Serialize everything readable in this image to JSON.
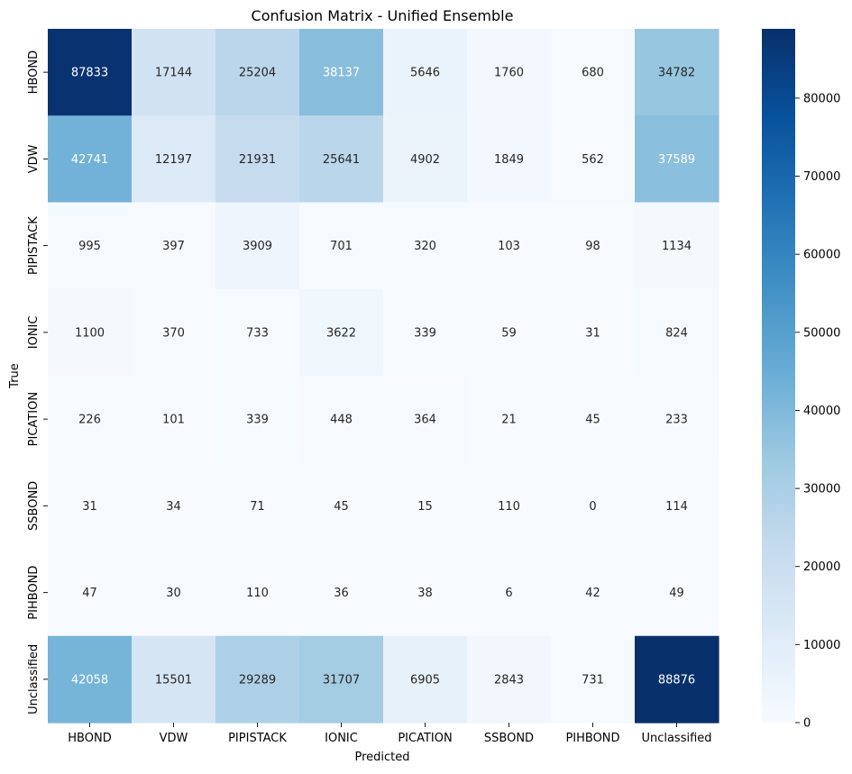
{
  "chart_data": {
    "type": "heatmap",
    "title": "Confusion Matrix - Unified Ensemble",
    "xlabel": "Predicted",
    "ylabel": "True",
    "x_categories": [
      "HBOND",
      "VDW",
      "PIPISTACK",
      "IONIC",
      "PICATION",
      "SSBOND",
      "PIHBOND",
      "Unclassified"
    ],
    "y_categories": [
      "HBOND",
      "VDW",
      "PIPISTACK",
      "IONIC",
      "PICATION",
      "SSBOND",
      "PIHBOND",
      "Unclassified"
    ],
    "matrix": [
      [
        87833,
        17144,
        25204,
        38137,
        5646,
        1760,
        680,
        34782
      ],
      [
        42741,
        12197,
        21931,
        25641,
        4902,
        1849,
        562,
        37589
      ],
      [
        995,
        397,
        3909,
        701,
        320,
        103,
        98,
        1134
      ],
      [
        1100,
        370,
        733,
        3622,
        339,
        59,
        31,
        824
      ],
      [
        226,
        101,
        339,
        448,
        364,
        21,
        45,
        233
      ],
      [
        31,
        34,
        71,
        45,
        15,
        110,
        0,
        114
      ],
      [
        47,
        30,
        110,
        36,
        38,
        6,
        42,
        49
      ],
      [
        42058,
        15501,
        29289,
        31707,
        6905,
        2843,
        731,
        88876
      ]
    ],
    "colorbar": {
      "colormap": "Blues",
      "vmin": 0,
      "vmax": 88876,
      "ticks": [
        0,
        10000,
        20000,
        30000,
        40000,
        50000,
        60000,
        70000,
        80000
      ]
    }
  }
}
